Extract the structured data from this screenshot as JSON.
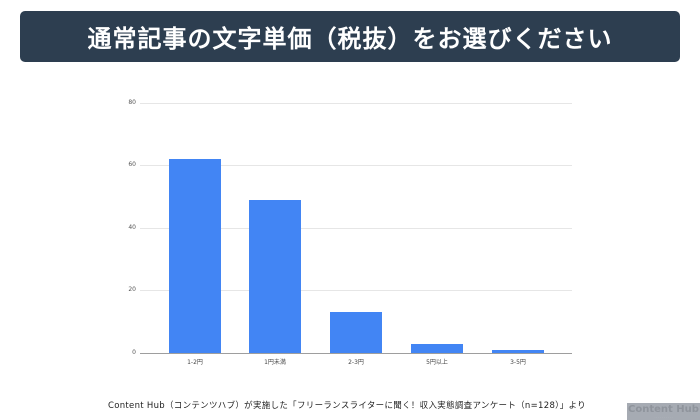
{
  "header": {
    "title": "通常記事の文字単価（税抜）をお選びください"
  },
  "chart_data": {
    "type": "bar",
    "title": "通常記事の文字単価（税抜）をお選びください",
    "categories": [
      "1-2円",
      "1円未満",
      "2-3円",
      "5円以上",
      "3-5円"
    ],
    "values": [
      62,
      49,
      13,
      3,
      1
    ],
    "xlabel": "",
    "ylabel": "",
    "ylim": [
      0,
      80
    ],
    "yticks": [
      "0",
      "20",
      "40",
      "60",
      "80"
    ],
    "grid": true,
    "legend": "none",
    "bar_color": "#4285f4"
  },
  "footer": {
    "source": "Content Hub（コンテンツハブ）が実施した「フリーランスライターに聞く！収入実態調査アンケート（n=128）」より",
    "logo_text": "Content Hub",
    "logo_sub": "· · · · · · · · · ·"
  }
}
